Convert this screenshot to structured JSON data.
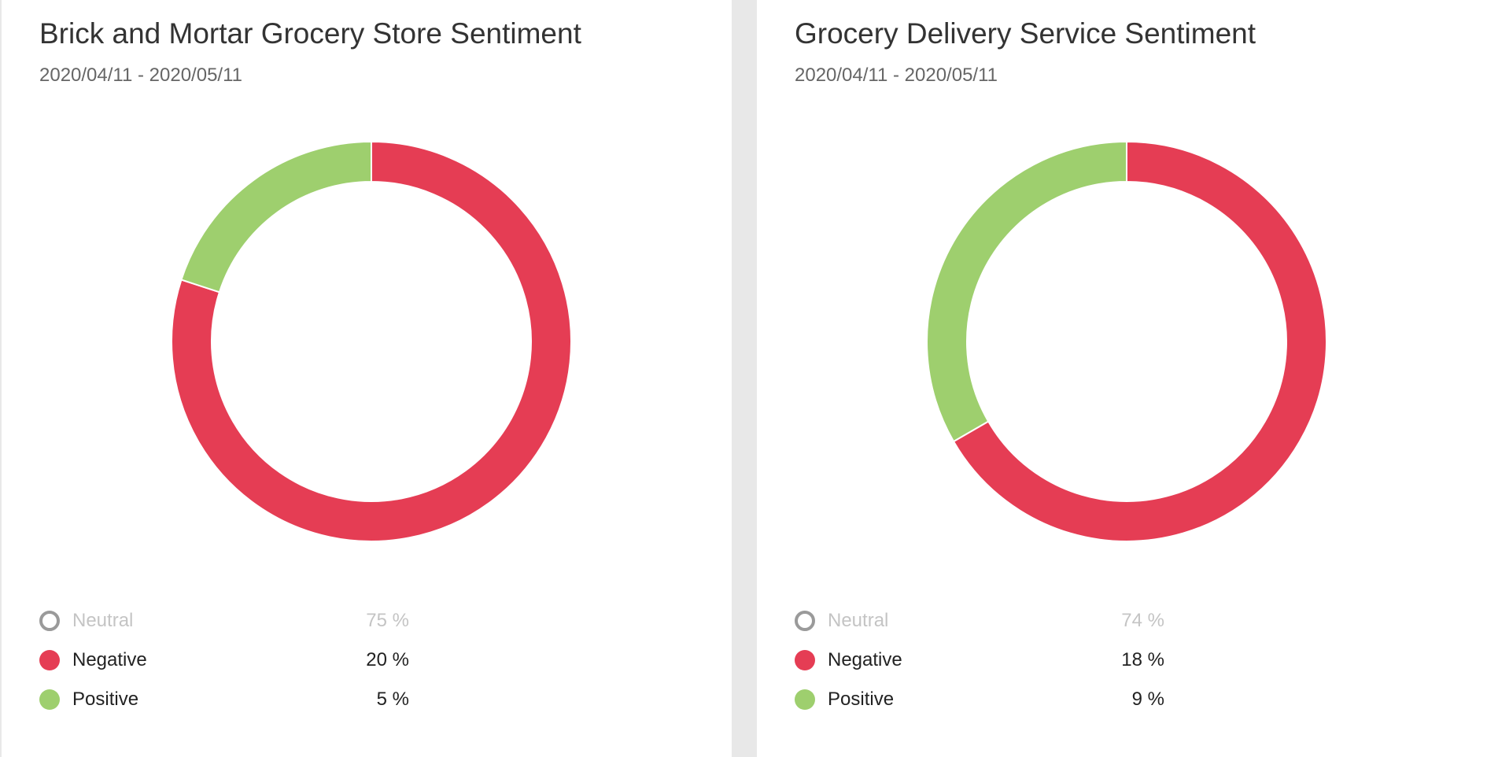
{
  "chart_data": [
    {
      "type": "pie",
      "title": "Brick and Mortar Grocery Store Sentiment",
      "subtitle": "2020/04/11 - 2020/05/11",
      "series": [
        {
          "name": "Neutral",
          "value": 75,
          "label": "75 %",
          "color": "#ffffff",
          "visible": false
        },
        {
          "name": "Negative",
          "value": 20,
          "label": "20 %",
          "color": "#e53d54",
          "visible": true
        },
        {
          "name": "Positive",
          "value": 5,
          "label": "5 %",
          "color": "#9ecf6e",
          "visible": true
        }
      ]
    },
    {
      "type": "pie",
      "title": "Grocery Delivery Service Sentiment",
      "subtitle": "2020/04/11 - 2020/05/11",
      "series": [
        {
          "name": "Neutral",
          "value": 74,
          "label": "74 %",
          "color": "#ffffff",
          "visible": false
        },
        {
          "name": "Negative",
          "value": 18,
          "label": "18 %",
          "color": "#e53d54",
          "visible": true
        },
        {
          "name": "Positive",
          "value": 9,
          "label": "9 %",
          "color": "#9ecf6e",
          "visible": true
        }
      ]
    }
  ],
  "colors": {
    "negative": "#e53d54",
    "positive": "#9ecf6e",
    "neutral_marker": "#9a9a9a",
    "hidden_text": "#c4c4c4",
    "separator": "#e8e8e8"
  }
}
